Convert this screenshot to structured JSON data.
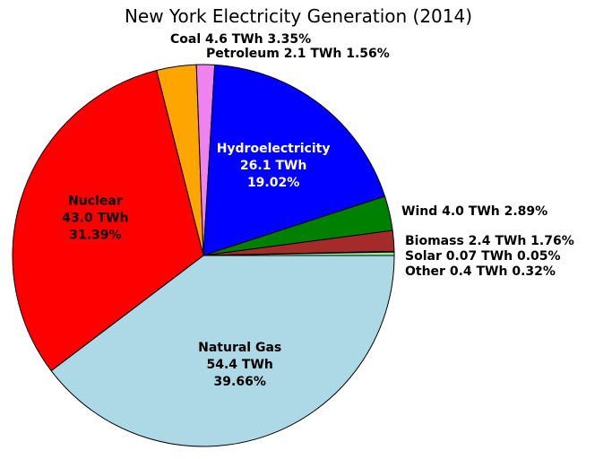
{
  "chart_data": {
    "type": "pie",
    "title": "New York Electricity Generation (2014)",
    "slices": [
      {
        "name": "Natural Gas",
        "value_text": "54.4 TWh",
        "pct_text": "39.66%",
        "value": 54.4,
        "percent": 39.66,
        "color": "#add8e6"
      },
      {
        "name": "Nuclear",
        "value_text": "43.0 TWh",
        "pct_text": "31.39%",
        "value": 43.0,
        "percent": 31.39,
        "color": "#ff0000"
      },
      {
        "name": "Coal",
        "value_text": "4.6 TWh",
        "pct_text": "3.35%",
        "value": 4.6,
        "percent": 3.35,
        "color": "#ffa500"
      },
      {
        "name": "Petroleum",
        "value_text": "2.1 TWh",
        "pct_text": "1.56%",
        "value": 2.1,
        "percent": 1.56,
        "color": "#ee82ee"
      },
      {
        "name": "Hydroelectricity",
        "value_text": "26.1 TWh",
        "pct_text": "19.02%",
        "value": 26.1,
        "percent": 19.02,
        "color": "#0000ff"
      },
      {
        "name": "Wind",
        "value_text": "4.0 TWh",
        "pct_text": "2.89%",
        "value": 4.0,
        "percent": 2.89,
        "color": "#008000"
      },
      {
        "name": "Biomass",
        "value_text": "2.4 TWh",
        "pct_text": "1.76%",
        "value": 2.4,
        "percent": 1.76,
        "color": "#a52a2a"
      },
      {
        "name": "Solar",
        "value_text": "0.07 TWh",
        "pct_text": "0.05%",
        "value": 0.07,
        "percent": 0.05,
        "color": "#ffff00"
      },
      {
        "name": "Other",
        "value_text": "0.4 TWh",
        "pct_text": "0.32%",
        "value": 0.4,
        "percent": 0.32,
        "color": "#90ee90"
      }
    ]
  }
}
